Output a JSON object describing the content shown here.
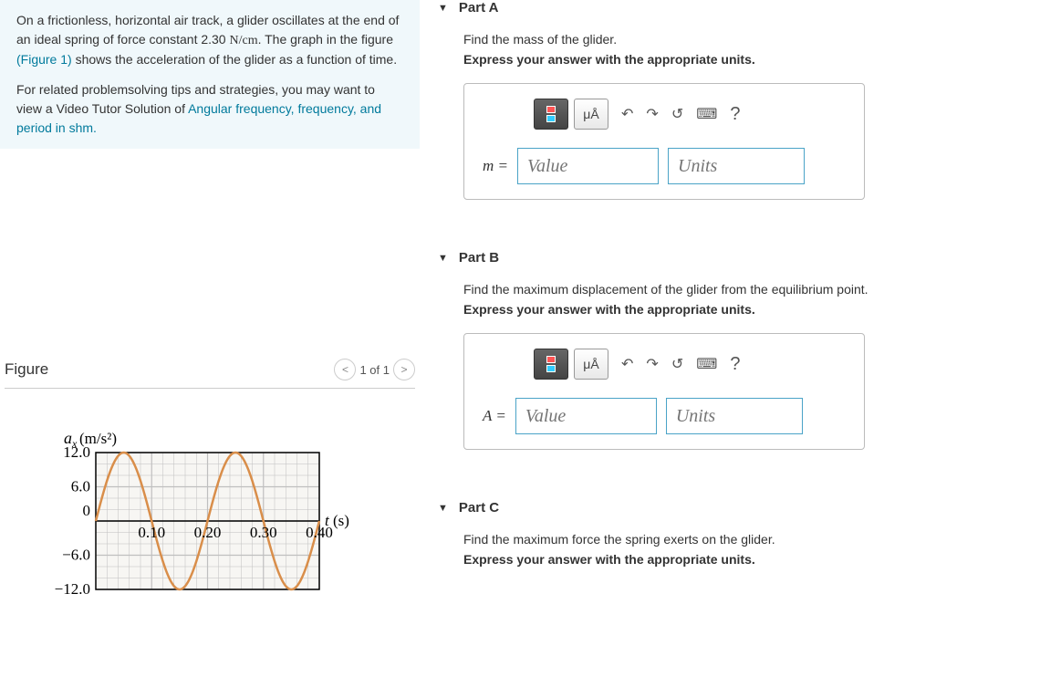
{
  "problem": {
    "text_prefix": "On a frictionless, horizontal air track, a glider oscillates at the end of an ideal spring of force constant 2.30 ",
    "units_inline": "N/cm",
    "text_mid": ". The graph in the figure ",
    "figure_link": "(Figure 1)",
    "text_after_fig": " shows the acceleration of the glider as a function of time.",
    "related_prefix": "For related problemsolving tips and strategies, you may want to view a Video Tutor Solution of ",
    "related_link": "Angular frequency, frequency, and period in shm."
  },
  "figure": {
    "title": "Figure",
    "nav_label": "1 of 1",
    "graph": {
      "y_label": "aₓ (m/s²)",
      "x_label": "t (s)",
      "y_ticks": [
        "12.0",
        "6.0",
        "0",
        "−6.0",
        "−12.0"
      ],
      "y_tick_values": [
        12,
        6,
        0,
        -6,
        -12
      ],
      "x_ticks": [
        "0.10",
        "0.20",
        "0.30",
        "0.40"
      ],
      "x_tick_values": [
        0.1,
        0.2,
        0.3,
        0.4
      ],
      "xlim": [
        0,
        0.4
      ],
      "ylim": [
        -12,
        12
      ],
      "amplitude": 12,
      "period": 0.2,
      "curve_color": "#d98e4a",
      "axis_color": "#000000",
      "grid_color": "#bfbfbf",
      "background_color": "#f7f6f3"
    }
  },
  "parts": {
    "a": {
      "title": "Part A",
      "prompt": "Find the mass of the glider.",
      "instruction": "Express your answer with the appropriate units.",
      "var_label": "m =",
      "value_placeholder": "Value",
      "units_placeholder": "Units"
    },
    "b": {
      "title": "Part B",
      "prompt": "Find the maximum displacement of the glider from the equilibrium point.",
      "instruction": "Express your answer with the appropriate units.",
      "var_label": "A =",
      "value_placeholder": "Value",
      "units_placeholder": "Units"
    },
    "c": {
      "title": "Part C",
      "prompt": "Find the maximum force the spring exerts on the glider.",
      "instruction": "Express your answer with the appropriate units."
    }
  },
  "toolbar": {
    "mu_a": "μÅ",
    "undo": "↶",
    "redo": "↷",
    "reset": "↺",
    "keyboard": "⌨",
    "help": "?"
  }
}
